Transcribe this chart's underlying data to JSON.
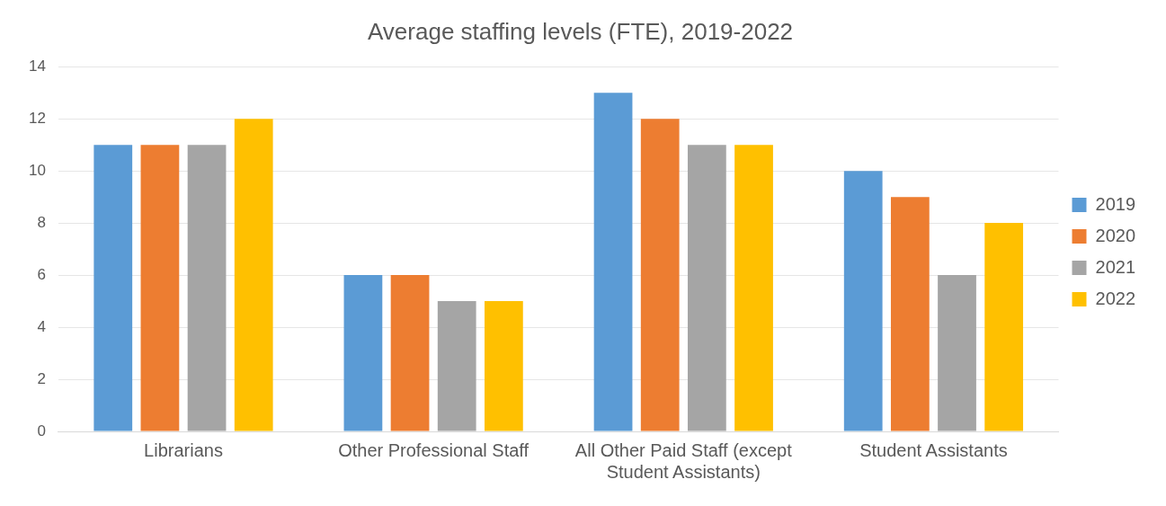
{
  "chart_data": {
    "type": "bar",
    "title": "Average staffing levels (FTE), 2019-2022",
    "categories": [
      "Librarians",
      "Other Professional Staff",
      "All Other Paid Staff (except Student Assistants)",
      "Student Assistants"
    ],
    "series": [
      {
        "name": "2019",
        "color": "#5b9bd5",
        "values": [
          11,
          6,
          13,
          10
        ]
      },
      {
        "name": "2020",
        "color": "#ed7d31",
        "values": [
          11,
          6,
          12,
          9
        ]
      },
      {
        "name": "2021",
        "color": "#a5a5a5",
        "values": [
          11,
          5,
          11,
          6
        ]
      },
      {
        "name": "2022",
        "color": "#ffc000",
        "values": [
          12,
          5,
          11,
          8
        ]
      }
    ],
    "ylim": [
      0,
      14
    ],
    "yticks": [
      0,
      2,
      4,
      6,
      8,
      10,
      12,
      14
    ],
    "grid": "y",
    "legend": "right"
  }
}
